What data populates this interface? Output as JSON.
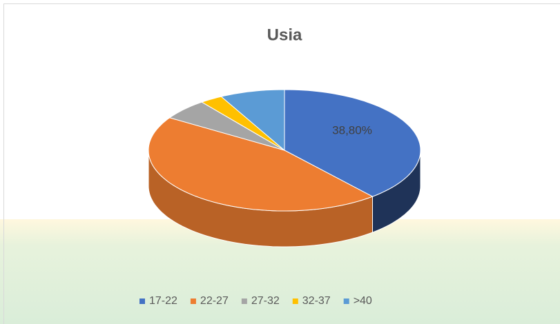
{
  "chart_data": {
    "type": "pie3d",
    "title": "Usia",
    "categories": [
      "17-22",
      "22-27",
      "27-32",
      "32-37",
      ">40"
    ],
    "values": [
      38.8,
      45.2,
      5.6,
      2.7,
      7.7
    ],
    "value_labels": [
      "38,80%",
      null,
      null,
      null,
      null
    ],
    "colors": [
      "#4472c4",
      "#ed7d31",
      "#a5a5a5",
      "#ffc000",
      "#5b9bd5"
    ],
    "legend": "bottom"
  }
}
